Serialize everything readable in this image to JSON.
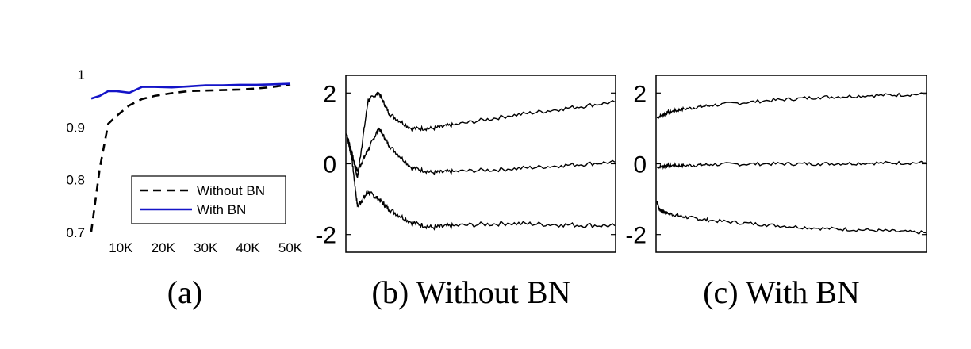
{
  "chart_data": [
    {
      "panel": "a",
      "type": "line",
      "caption": "(a)",
      "xlim": [
        3000,
        50000
      ],
      "ylim": [
        0.7,
        1.0
      ],
      "xticks": [
        10000,
        20000,
        30000,
        40000,
        50000
      ],
      "xtick_labels": [
        "10K",
        "20K",
        "30K",
        "40K",
        "50K"
      ],
      "yticks": [
        0.7,
        0.8,
        0.9,
        1.0
      ],
      "ytick_labels": [
        "0.7",
        "0.8",
        "0.9",
        "1"
      ],
      "legend_position": "bottom-right",
      "series": [
        {
          "name": "Without BN",
          "color": "#000000",
          "style": "dashed",
          "x": [
            3000,
            5000,
            7000,
            9000,
            12000,
            15000,
            18000,
            22000,
            26000,
            30000,
            34000,
            38000,
            42000,
            46000,
            50000
          ],
          "y": [
            0.7,
            0.82,
            0.905,
            0.92,
            0.94,
            0.952,
            0.958,
            0.963,
            0.967,
            0.968,
            0.969,
            0.97,
            0.972,
            0.975,
            0.98
          ]
        },
        {
          "name": "With BN",
          "color": "#1414c8",
          "style": "solid",
          "x": [
            3000,
            5000,
            7000,
            9000,
            12000,
            15000,
            18000,
            22000,
            26000,
            30000,
            34000,
            38000,
            42000,
            46000,
            50000
          ],
          "y": [
            0.953,
            0.958,
            0.967,
            0.967,
            0.964,
            0.975,
            0.975,
            0.974,
            0.976,
            0.978,
            0.978,
            0.979,
            0.979,
            0.98,
            0.981
          ]
        }
      ]
    },
    {
      "panel": "b",
      "type": "line",
      "caption": "(b) Without BN",
      "x_range": [
        0,
        50000
      ],
      "ylim": [
        -2.5,
        2.5
      ],
      "yticks": [
        -2,
        0,
        2
      ],
      "ytick_labels": [
        "-2",
        "0",
        "2"
      ],
      "series": [
        {
          "name": "",
          "color": "#000000",
          "x": [
            0,
            1000,
            2000,
            4000,
            6000,
            8000,
            12000,
            16000,
            20000,
            30000,
            40000,
            50000
          ],
          "y": [
            0.85,
            0.3,
            -0.4,
            1.8,
            2.0,
            1.4,
            1.0,
            1.0,
            1.1,
            1.35,
            1.55,
            1.75
          ]
        },
        {
          "name": "",
          "color": "#000000",
          "x": [
            0,
            1000,
            2000,
            4000,
            6000,
            8000,
            12000,
            16000,
            20000,
            30000,
            40000,
            50000
          ],
          "y": [
            0.85,
            0.2,
            -0.2,
            0.4,
            1.0,
            0.5,
            -0.1,
            -0.25,
            -0.22,
            -0.15,
            -0.05,
            0.05
          ]
        },
        {
          "name": "",
          "color": "#000000",
          "x": [
            0,
            1000,
            2000,
            4000,
            6000,
            8000,
            12000,
            16000,
            20000,
            30000,
            40000,
            50000
          ],
          "y": [
            0.85,
            0.1,
            -1.2,
            -0.8,
            -1.0,
            -1.3,
            -1.65,
            -1.8,
            -1.75,
            -1.68,
            -1.72,
            -1.75
          ]
        }
      ]
    },
    {
      "panel": "c",
      "type": "line",
      "caption": "(c) With BN",
      "x_range": [
        0,
        50000
      ],
      "ylim": [
        -2.5,
        2.5
      ],
      "yticks": [
        -2,
        0,
        2
      ],
      "ytick_labels": [
        "-2",
        "0",
        "2"
      ],
      "series": [
        {
          "name": "",
          "color": "#000000",
          "x": [
            0,
            2000,
            5000,
            10000,
            20000,
            30000,
            40000,
            50000
          ],
          "y": [
            1.3,
            1.45,
            1.55,
            1.65,
            1.78,
            1.88,
            1.93,
            1.97
          ]
        },
        {
          "name": "",
          "color": "#000000",
          "x": [
            0,
            2000,
            5000,
            10000,
            20000,
            30000,
            40000,
            50000
          ],
          "y": [
            -0.1,
            -0.05,
            -0.05,
            -0.02,
            0.0,
            0.0,
            0.02,
            0.03
          ]
        },
        {
          "name": "",
          "color": "#000000",
          "x": [
            0,
            500,
            2000,
            5000,
            10000,
            20000,
            30000,
            40000,
            50000
          ],
          "y": [
            -1.05,
            -1.3,
            -1.4,
            -1.5,
            -1.6,
            -1.72,
            -1.82,
            -1.88,
            -1.95
          ]
        }
      ]
    }
  ]
}
